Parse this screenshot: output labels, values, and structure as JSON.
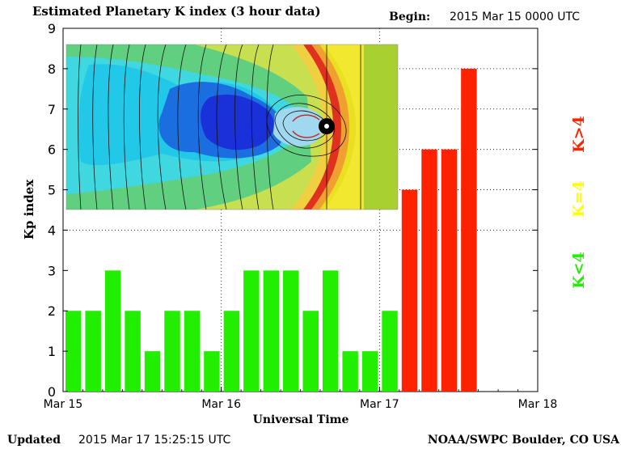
{
  "header": {
    "title": "Estimated Planetary K index (3 hour data)",
    "begin_label": "Begin:",
    "begin_value": "2015 Mar 15 0000 UTC"
  },
  "footer": {
    "updated_label": "Updated",
    "updated_value": "2015 Mar 17 15:25:15 UTC",
    "source": "NOAA/SWPC Boulder, CO USA"
  },
  "legend": {
    "high": "K>4",
    "equal": "K=4",
    "low": "K<4"
  },
  "colors": {
    "low": "#22ee00",
    "equal": "#ffff00",
    "high": "#ff2200",
    "grid": "#000000"
  },
  "chart_data": {
    "type": "bar",
    "title": "Estimated Planetary K index (3 hour data)",
    "xlabel": "Universal Time",
    "ylabel": "Kp index",
    "ylim": [
      0,
      9
    ],
    "y_ticks": [
      "0",
      "1",
      "2",
      "3",
      "4",
      "5",
      "6",
      "7",
      "8",
      "9"
    ],
    "x_ticks": [
      "Mar 15",
      "Mar 16",
      "Mar 17",
      "Mar 18"
    ],
    "slots_total": 24,
    "values": [
      2,
      2,
      3,
      2,
      1,
      2,
      2,
      1,
      2,
      3,
      3,
      3,
      2,
      3,
      1,
      1,
      2,
      5,
      6,
      6,
      8
    ],
    "threshold": 4,
    "grid": "dotted, y=4..8 and day boundaries"
  },
  "inset_image": {
    "description_icon": "magnetosphere-simulation-image"
  }
}
